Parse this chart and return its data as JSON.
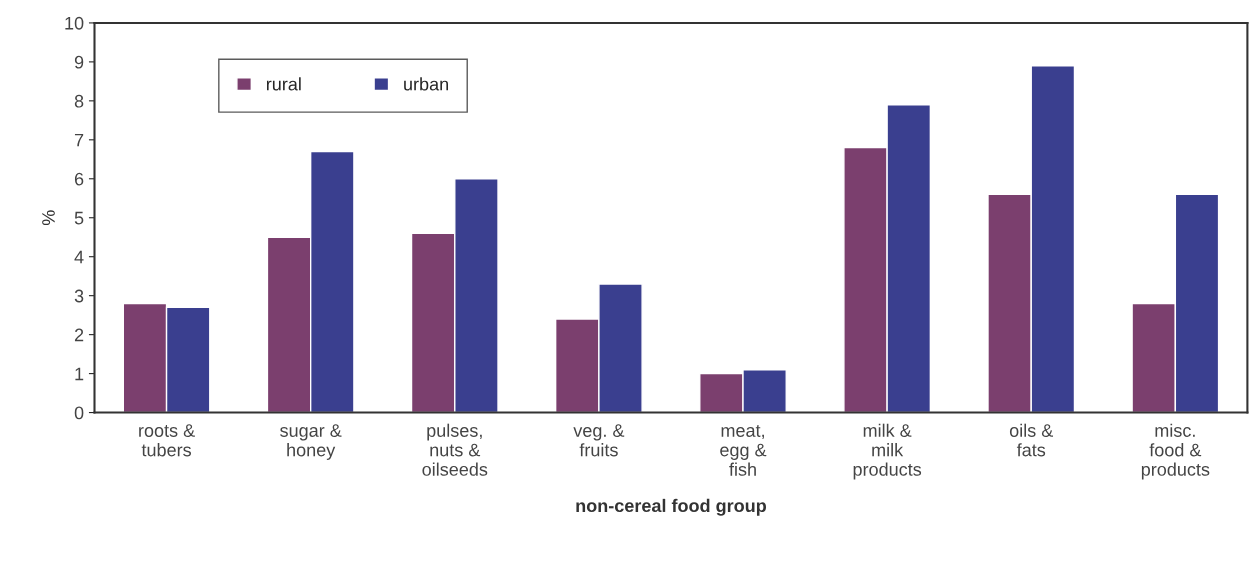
{
  "chart_data": {
    "type": "bar",
    "xlabel": "non-cereal food group",
    "ylabel": "%",
    "categories": [
      "roots &\ntubers",
      "sugar &\nhoney",
      "pulses,\nnuts &\noilseeds",
      "veg. &\nfruits",
      "meat,\negg &\nfish",
      "milk &\nmilk\nproducts",
      "oils &\nfats",
      "misc.\nfood &\nproducts"
    ],
    "series": [
      {
        "name": "rural",
        "color": "#7b3f6e",
        "values": [
          2.8,
          4.5,
          4.6,
          2.4,
          1.0,
          6.8,
          5.6,
          2.8
        ]
      },
      {
        "name": "urban",
        "color": "#3a3f8f",
        "values": [
          2.7,
          6.7,
          6.0,
          3.3,
          1.1,
          7.9,
          8.9,
          5.6
        ]
      }
    ],
    "ylim": [
      0,
      10
    ],
    "yticks": [
      0,
      1,
      2,
      3,
      4,
      5,
      6,
      7,
      8,
      9,
      10
    ],
    "grid": false,
    "legend": "top left"
  }
}
